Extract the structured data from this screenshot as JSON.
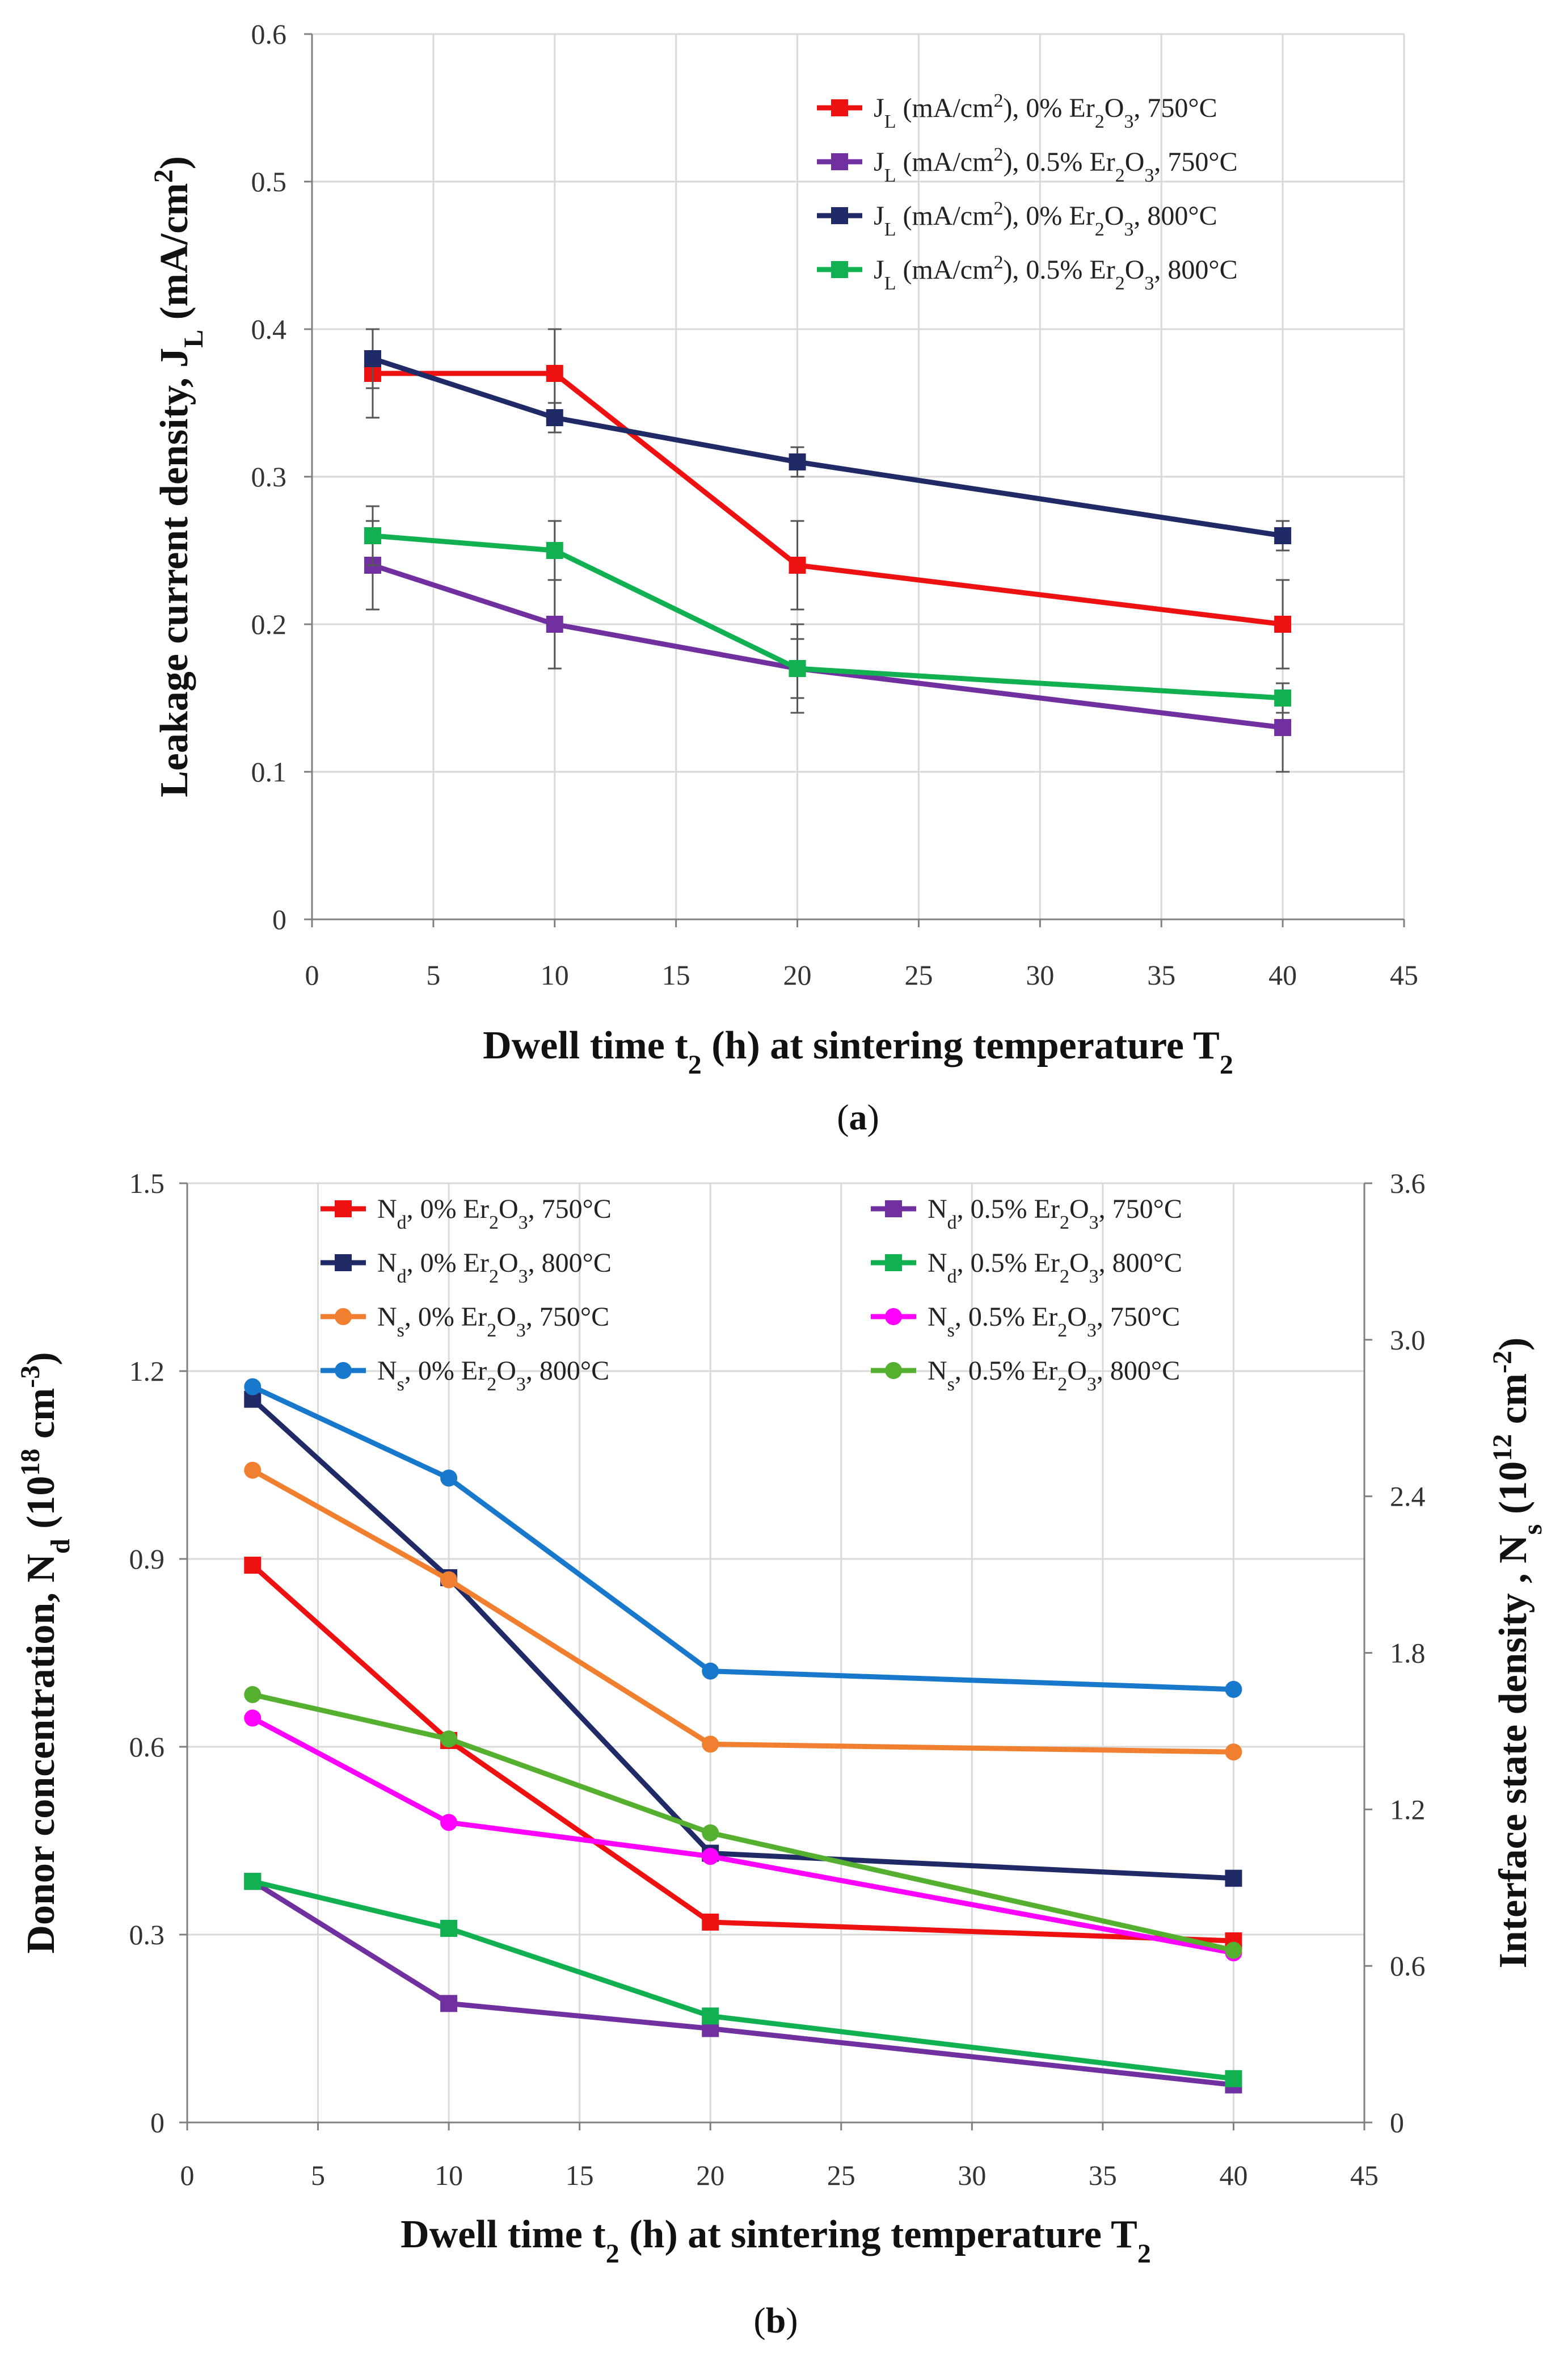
{
  "colors": {
    "red": "#ee1111",
    "purple": "#7030a0",
    "navy": "#1f2a66",
    "green": "#11b050",
    "orange": "#f08030",
    "blue": "#1878cc",
    "magenta": "#ff00ff",
    "lightgreen": "#55b030"
  },
  "chart_data": [
    {
      "type": "line",
      "panel_label": "a",
      "xlabel_main": "Dwell time t",
      "xlabel_sub": "2",
      "xlabel_rest": " (h) at sintering temperature T",
      "xlabel_sub2": "2",
      "ylabel_main": "Leakage current density, J",
      "ylabel_sub": "L",
      "ylabel_rest": " (mA/cm",
      "ylabel_sup": "2",
      "ylabel_end": ")",
      "xlim": [
        0,
        45
      ],
      "ylim": [
        0,
        0.6
      ],
      "xticks": [
        0,
        5,
        10,
        15,
        20,
        25,
        30,
        35,
        40,
        45
      ],
      "xtick_labels": [
        "0",
        "5",
        "10",
        "15",
        "20",
        "25",
        "30",
        "35",
        "40",
        "45"
      ],
      "yticks": [
        0,
        0.1,
        0.2,
        0.3,
        0.4,
        0.5,
        0.6
      ],
      "ytick_labels": [
        "0",
        "0.1",
        "0.2",
        "0.3",
        "0.4",
        "0.5",
        "0.6"
      ],
      "x": [
        2.5,
        10,
        20,
        40
      ],
      "series": [
        {
          "name": "J_L (mA/cm2), 0% Er2O3, 750°C",
          "color": "red",
          "marker": "square",
          "values": [
            0.37,
            0.37,
            0.24,
            0.2
          ],
          "errors": [
            0.03,
            0.03,
            0.03,
            0.03
          ],
          "legend": {
            "a": "J",
            "b": "L",
            "c": " (mA/cm",
            "d": "2",
            "e": "), 0% Er",
            "f": "2",
            "g": "O",
            "h": "3",
            "i": ", 750°C"
          }
        },
        {
          "name": "J_L (mA/cm2), 0.5% Er2O3, 750°C",
          "color": "purple",
          "marker": "square",
          "values": [
            0.24,
            0.2,
            0.17,
            0.13
          ],
          "errors": [
            0.03,
            0.03,
            0.03,
            0.03
          ],
          "legend": {
            "a": "J",
            "b": "L",
            "c": " (mA/cm",
            "d": "2",
            "e": "), 0.5% Er",
            "f": "2",
            "g": "O",
            "h": "3",
            "i": ", 750°C"
          }
        },
        {
          "name": "J_L (mA/cm2), 0% Er2O3, 800°C",
          "color": "navy",
          "marker": "square",
          "values": [
            0.38,
            0.34,
            0.31,
            0.26
          ],
          "errors": [
            0.02,
            0.01,
            0.01,
            0.01
          ],
          "legend": {
            "a": "J",
            "b": "L",
            "c": " (mA/cm",
            "d": "2",
            "e": "), 0% Er",
            "f": "2",
            "g": "O",
            "h": "3",
            "i": ", 800°C"
          }
        },
        {
          "name": "J_L (mA/cm2), 0.5% Er2O3, 800°C",
          "color": "green",
          "marker": "square",
          "values": [
            0.26,
            0.25,
            0.17,
            0.15
          ],
          "errors": [
            0.02,
            0.02,
            0.02,
            0.01
          ],
          "legend": {
            "a": "J",
            "b": "L",
            "c": " (mA/cm",
            "d": "2",
            "e": "), 0.5% Er",
            "f": "2",
            "g": "O",
            "h": "3",
            "i": ", 800°C"
          }
        }
      ]
    },
    {
      "type": "line",
      "panel_label": "b",
      "xlabel_main": "Dwell time t",
      "xlabel_sub": "2",
      "xlabel_rest": " (h) at sintering temperature T",
      "xlabel_sub2": "2",
      "ylabel_main": "Donor concentration, N",
      "ylabel_sub": "d",
      "ylabel_rest": " (10",
      "ylabel_sup": "18",
      "ylabel_end": " cm",
      "ylabel_sup2": "-3",
      "ylabel_close": ")",
      "y2label_main": "Interface state density , N",
      "y2label_sub": "s",
      "y2label_rest": " (10",
      "y2label_sup": "12",
      "y2label_end": " cm",
      "y2label_sup2": "-2",
      "y2label_close": ")",
      "xlim": [
        0,
        45
      ],
      "ylim": [
        0,
        1.5
      ],
      "y2lim": [
        0,
        3.6
      ],
      "xticks": [
        0,
        5,
        10,
        15,
        20,
        25,
        30,
        35,
        40,
        45
      ],
      "xtick_labels": [
        "0",
        "5",
        "10",
        "15",
        "20",
        "25",
        "30",
        "35",
        "40",
        "45"
      ],
      "yticks": [
        0,
        0.3,
        0.6,
        0.9,
        1.2,
        1.5
      ],
      "ytick_labels": [
        "0",
        "0.3",
        "0.6",
        "0.9",
        "1.2",
        "1.5"
      ],
      "y2ticks": [
        0,
        0.6,
        1.2,
        1.8,
        2.4,
        3.0,
        3.6
      ],
      "y2tick_labels": [
        "0",
        "0.6",
        "1.2",
        "1.8",
        "2.4",
        "3.0",
        "3.6"
      ],
      "x": [
        2.5,
        10,
        20,
        40
      ],
      "series": [
        {
          "name": "Nd, 0% Er2O3, 750°C",
          "color": "red",
          "marker": "square",
          "axis": "left",
          "values": [
            0.89,
            0.61,
            0.32,
            0.29
          ],
          "legend": {
            "a": "N",
            "b": "d",
            "e": ", 0% Er",
            "f": "2",
            "g": "O",
            "h": "3",
            "i": ", 750°C"
          }
        },
        {
          "name": "Nd, 0% Er2O3, 800°C",
          "color": "navy",
          "marker": "square",
          "axis": "left",
          "values": [
            1.155,
            0.87,
            0.43,
            0.39
          ],
          "legend": {
            "a": "N",
            "b": "d",
            "e": ", 0% Er",
            "f": "2",
            "g": "O",
            "h": "3",
            "i": ", 800°C"
          }
        },
        {
          "name": "Ns, 0% Er2O3, 750°C",
          "color": "orange",
          "marker": "circle",
          "axis": "right",
          "values": [
            2.5,
            2.08,
            1.45,
            1.42
          ],
          "legend": {
            "a": "N",
            "b": "s",
            "e": ", 0% Er",
            "f": "2",
            "g": "O",
            "h": "3",
            "i": ", 750°C"
          }
        },
        {
          "name": "Ns, 0% Er2O3, 800°C",
          "color": "blue",
          "marker": "circle",
          "axis": "right",
          "values": [
            2.82,
            2.47,
            1.73,
            1.66
          ],
          "legend": {
            "a": "N",
            "b": "s",
            "e": ", 0% Er",
            "f": "2",
            "g": "O",
            "h": "3",
            "i": ", 800°C"
          }
        },
        {
          "name": "Nd, 0.5% Er2O3, 750°C",
          "color": "purple",
          "marker": "square",
          "axis": "left",
          "values": [
            0.385,
            0.19,
            0.15,
            0.06
          ],
          "legend": {
            "a": "N",
            "b": "d",
            "e": ", 0.5% Er",
            "f": "2",
            "g": "O",
            "h": "3",
            "i": ", 750°C"
          }
        },
        {
          "name": "Nd, 0.5% Er2O3, 800°C",
          "color": "green",
          "marker": "square",
          "axis": "left",
          "values": [
            0.385,
            0.31,
            0.17,
            0.07
          ],
          "legend": {
            "a": "N",
            "b": "d",
            "e": ", 0.5% Er",
            "f": "2",
            "g": "O",
            "h": "3",
            "i": ", 800°C"
          }
        },
        {
          "name": "Ns, 0.5% Er2O3, 750°C",
          "color": "magenta",
          "marker": "circle",
          "axis": "right",
          "values": [
            1.55,
            1.15,
            1.02,
            0.65
          ],
          "legend": {
            "a": "N",
            "b": "s",
            "e": ", 0.5% Er",
            "f": "2",
            "g": "O",
            "h": "3",
            "i": ", 750°C"
          }
        },
        {
          "name": "Ns, 0.5% Er2O3, 800°C",
          "color": "lightgreen",
          "marker": "circle",
          "axis": "right",
          "values": [
            1.64,
            1.47,
            1.11,
            0.66
          ],
          "legend": {
            "a": "N",
            "b": "s",
            "e": ", 0.5% Er",
            "f": "2",
            "g": "O",
            "h": "3",
            "i": ", 800°C"
          }
        }
      ]
    }
  ]
}
